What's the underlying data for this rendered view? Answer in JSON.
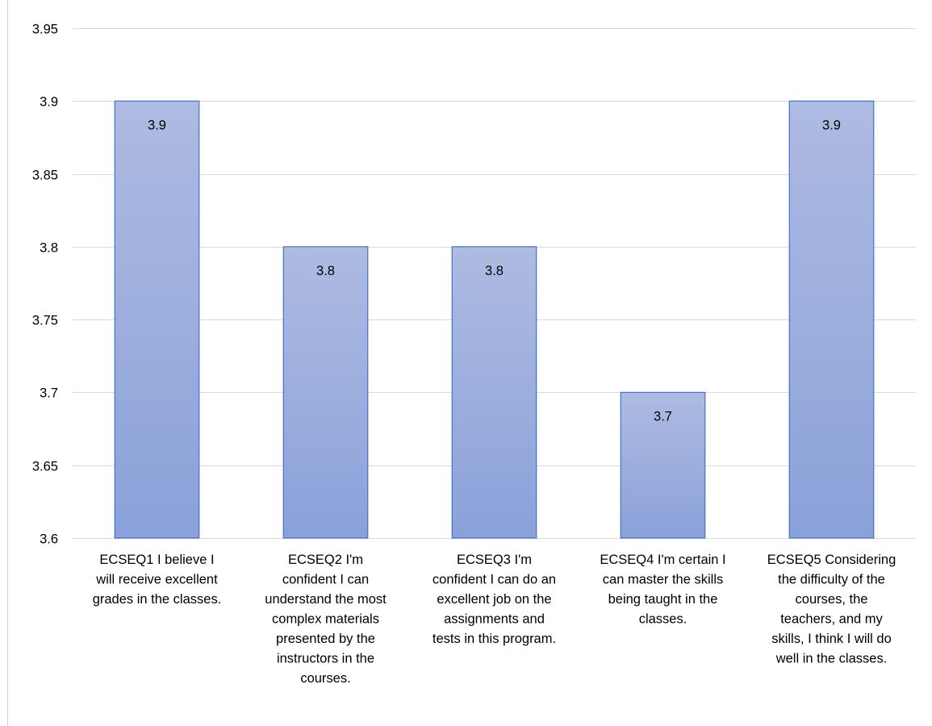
{
  "chart_data": {
    "type": "bar",
    "title": "",
    "xlabel": "",
    "ylabel": "",
    "ylim": [
      3.6,
      3.95
    ],
    "yticks": [
      3.6,
      3.65,
      3.7,
      3.75,
      3.8,
      3.85,
      3.9,
      3.95
    ],
    "ytick_labels": [
      "3.6",
      "3.65",
      "3.7",
      "3.75",
      "3.8",
      "3.85",
      "3.9",
      "3.95"
    ],
    "grid": true,
    "legend": "none",
    "categories": [
      [
        "ECSEQ1 I believe I",
        "will receive excellent",
        "grades in the classes."
      ],
      [
        "ECSEQ2 I'm",
        "confident I can",
        "understand the most",
        "complex materials",
        "presented by the",
        "instructors in the",
        "courses."
      ],
      [
        "ECSEQ3 I'm",
        "confident I can do an",
        "excellent job on the",
        "assignments and",
        "tests in this program."
      ],
      [
        "ECSEQ4 I'm certain I",
        "can master the skills",
        "being taught in the",
        "classes."
      ],
      [
        "ECSEQ5 Considering",
        "the difficulty of the",
        "courses, the",
        "teachers, and my",
        "skills, I think I will do",
        "well in the classes."
      ]
    ],
    "values": [
      3.9,
      3.8,
      3.8,
      3.7,
      3.9
    ],
    "data_labels": [
      "3.9",
      "3.8",
      "3.8",
      "3.7",
      "3.9"
    ],
    "colors": {
      "bar_top": "#aebbe2",
      "bar_bottom": "#8aa1d9",
      "bar_border": "#4472c4",
      "grid": "#d9d9d9"
    }
  }
}
